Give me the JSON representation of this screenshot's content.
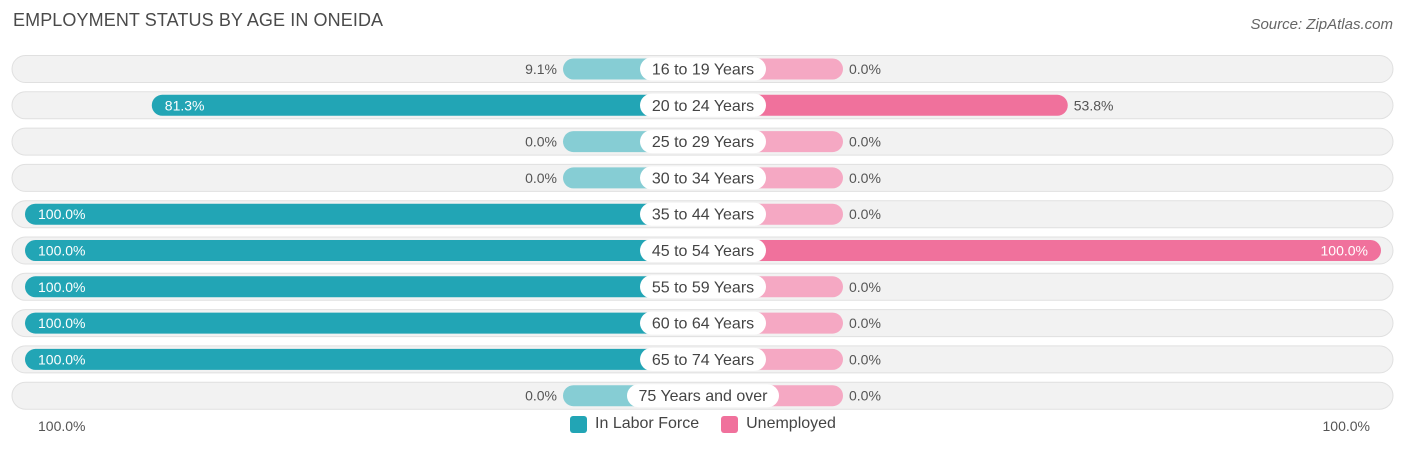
{
  "title": "EMPLOYMENT STATUS BY AGE IN ONEIDA",
  "source": "Source: ZipAtlas.com",
  "colors": {
    "labor_force": "#22a5b5",
    "labor_force_light": "#86cdd4",
    "unemployed": "#f0719c",
    "unemployed_light": "#f5a8c3",
    "row_bg": "#f2f2f2",
    "row_border": "#e0e0e0"
  },
  "axis": {
    "left_label": "100.0%",
    "right_label": "100.0%"
  },
  "legend": [
    {
      "label": "In Labor Force",
      "color": "#22a5b5"
    },
    {
      "label": "Unemployed",
      "color": "#f0719c"
    }
  ],
  "chart_data": {
    "type": "bar",
    "orientation": "diverging-horizontal",
    "title": "EMPLOYMENT STATUS BY AGE IN ONEIDA",
    "categories": [
      "16 to 19 Years",
      "20 to 24 Years",
      "25 to 29 Years",
      "30 to 34 Years",
      "35 to 44 Years",
      "45 to 54 Years",
      "55 to 59 Years",
      "60 to 64 Years",
      "65 to 74 Years",
      "75 Years and over"
    ],
    "series": [
      {
        "name": "In Labor Force",
        "values": [
          9.1,
          81.3,
          0.0,
          0.0,
          100.0,
          100.0,
          100.0,
          100.0,
          100.0,
          0.0
        ],
        "labels": [
          "9.1%",
          "81.3%",
          "0.0%",
          "0.0%",
          "100.0%",
          "100.0%",
          "100.0%",
          "100.0%",
          "100.0%",
          "0.0%"
        ]
      },
      {
        "name": "Unemployed",
        "values": [
          0.0,
          53.8,
          0.0,
          0.0,
          0.0,
          100.0,
          0.0,
          0.0,
          0.0,
          0.0
        ],
        "labels": [
          "0.0%",
          "53.8%",
          "0.0%",
          "0.0%",
          "0.0%",
          "100.0%",
          "0.0%",
          "0.0%",
          "0.0%",
          "0.0%"
        ]
      }
    ],
    "xlim": [
      0,
      100
    ],
    "legend_position": "bottom-center"
  }
}
